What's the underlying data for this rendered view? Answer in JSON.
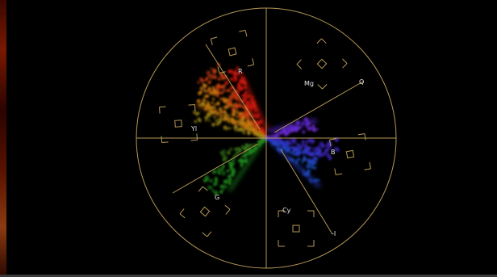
{
  "vectorscope": {
    "graticule_color": "#c8a860",
    "labels": {
      "R": "R",
      "Mg": "Mg",
      "B": "B",
      "Cy": "Cy",
      "G": "G",
      "Yl": "Yl",
      "Q": "Q",
      "minus_I": "-I"
    }
  }
}
